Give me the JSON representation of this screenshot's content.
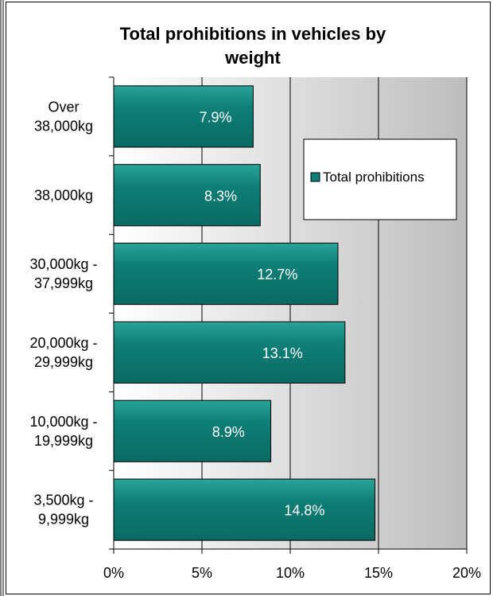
{
  "chart_data": {
    "type": "bar",
    "orientation": "horizontal",
    "title_lines": [
      "Total prohibitions in vehicles by",
      "weight"
    ],
    "categories": [
      [
        "Over",
        "38,000kg"
      ],
      [
        "38,000kg"
      ],
      [
        "30,000kg -",
        "37,999kg"
      ],
      [
        "20,000kg -",
        "29,999kg"
      ],
      [
        "10,000kg -",
        "19,999kg"
      ],
      [
        "3,500kg -",
        "9,999kg"
      ]
    ],
    "series": [
      {
        "name": "Total prohibitions",
        "values": [
          7.9,
          8.3,
          12.7,
          13.1,
          8.9,
          14.8
        ],
        "labels": [
          "7.9%",
          "8.3%",
          "12.7%",
          "13.1%",
          "8.9%",
          "14.8%"
        ],
        "color": "#0e7f77"
      }
    ],
    "xlim": [
      0,
      20
    ],
    "xticks": [
      0,
      5,
      10,
      15,
      20
    ],
    "xtick_labels": [
      "0%",
      "5%",
      "10%",
      "15%",
      "20%"
    ],
    "grid": true,
    "legend_position": "top-right",
    "colors": {
      "bar_fill": "#0e7f77",
      "bar_highlight": "#2aa49a",
      "bar_stroke": "#000000",
      "plot_bg_light": "#ffffff",
      "plot_bg_dark": "#bdbdbd",
      "border": "#000000"
    }
  }
}
